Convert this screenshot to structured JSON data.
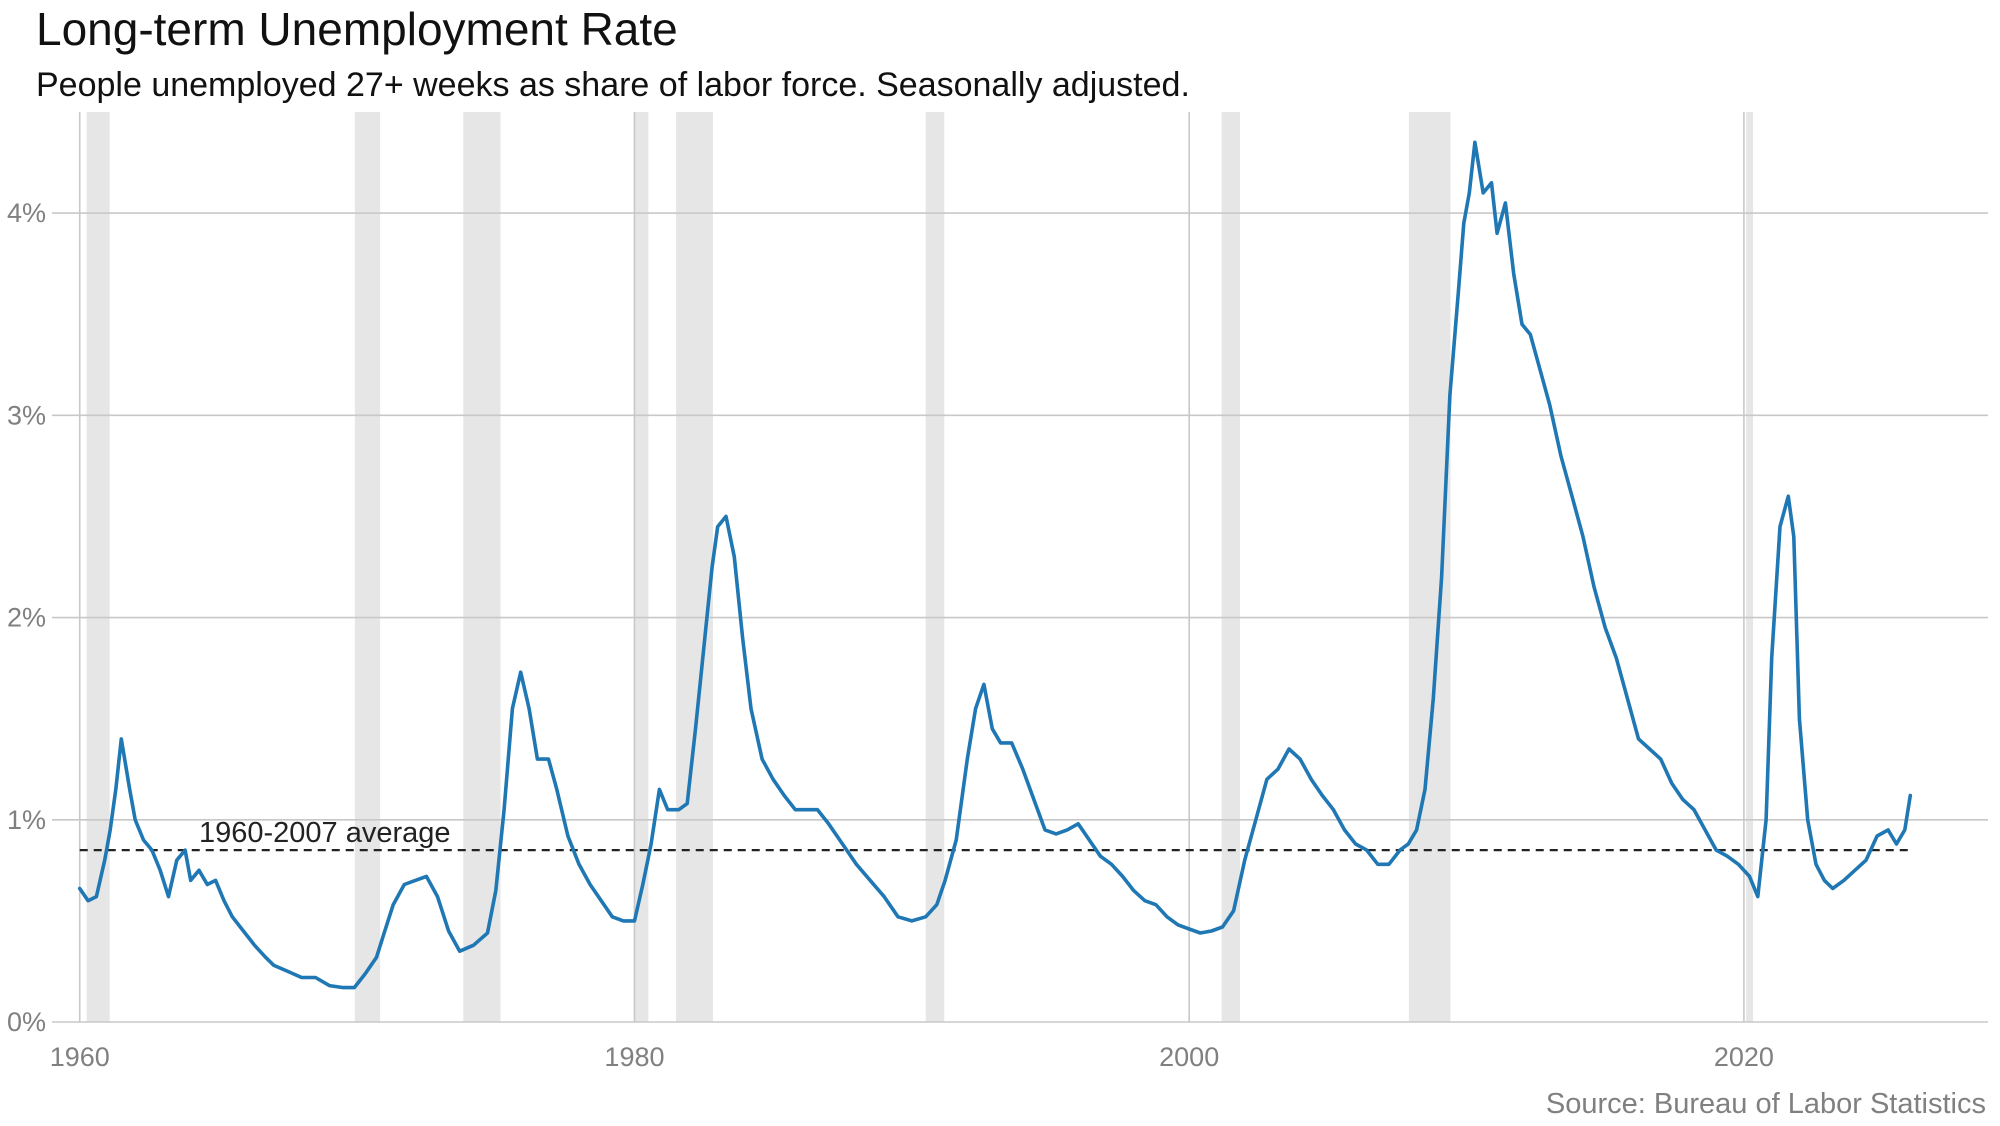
{
  "chart_data": {
    "type": "line",
    "title": "Long-term Unemployment Rate",
    "subtitle": "People unemployed 27+ weeks as share of labor force. Seasonally adjusted.",
    "source": "Source: Bureau of Labor Statistics",
    "xlabel": "",
    "ylabel": "",
    "xlim": [
      1959.0,
      2028.8
    ],
    "ylim": [
      0,
      4.5
    ],
    "x_ticks": [
      1960,
      1980,
      2000,
      2020
    ],
    "x_tick_labels": [
      "1960",
      "1980",
      "2000",
      "2020"
    ],
    "y_ticks": [
      0,
      1,
      2,
      3,
      4
    ],
    "y_tick_labels": [
      "0%",
      "1%",
      "2%",
      "3%",
      "4%"
    ],
    "grid": true,
    "legend": "none",
    "line_color": "#1f77b4",
    "recession_color": "#e6e6e6",
    "recessions": [
      [
        1960.25,
        1961.08
      ],
      [
        1969.92,
        1970.83
      ],
      [
        1973.83,
        1975.17
      ],
      [
        1980.0,
        1980.5
      ],
      [
        1981.5,
        1982.83
      ],
      [
        1990.5,
        1991.17
      ],
      [
        2001.17,
        2001.83
      ],
      [
        2007.92,
        2009.42
      ],
      [
        2020.08,
        2020.33
      ]
    ],
    "reference_line": {
      "label": "1960-2007 average",
      "value": 0.85,
      "style": "dashed",
      "color": "#222222"
    },
    "series": [
      {
        "values": [
          [
            1960.0,
            0.66
          ],
          [
            1960.3,
            0.6
          ],
          [
            1960.6,
            0.62
          ],
          [
            1960.9,
            0.8
          ],
          [
            1961.1,
            0.95
          ],
          [
            1961.3,
            1.15
          ],
          [
            1961.5,
            1.4
          ],
          [
            1961.8,
            1.15
          ],
          [
            1962.0,
            1.0
          ],
          [
            1962.3,
            0.9
          ],
          [
            1962.6,
            0.85
          ],
          [
            1962.9,
            0.75
          ],
          [
            1963.2,
            0.62
          ],
          [
            1963.5,
            0.8
          ],
          [
            1963.8,
            0.85
          ],
          [
            1964.0,
            0.7
          ],
          [
            1964.3,
            0.75
          ],
          [
            1964.6,
            0.68
          ],
          [
            1964.9,
            0.7
          ],
          [
            1965.2,
            0.6
          ],
          [
            1965.5,
            0.52
          ],
          [
            1965.9,
            0.45
          ],
          [
            1966.3,
            0.38
          ],
          [
            1966.7,
            0.32
          ],
          [
            1967.0,
            0.28
          ],
          [
            1967.5,
            0.25
          ],
          [
            1968.0,
            0.22
          ],
          [
            1968.5,
            0.22
          ],
          [
            1969.0,
            0.18
          ],
          [
            1969.5,
            0.17
          ],
          [
            1969.9,
            0.17
          ],
          [
            1970.3,
            0.24
          ],
          [
            1970.7,
            0.32
          ],
          [
            1971.0,
            0.45
          ],
          [
            1971.3,
            0.58
          ],
          [
            1971.7,
            0.68
          ],
          [
            1972.1,
            0.7
          ],
          [
            1972.5,
            0.72
          ],
          [
            1972.9,
            0.62
          ],
          [
            1973.3,
            0.45
          ],
          [
            1973.7,
            0.35
          ],
          [
            1974.2,
            0.38
          ],
          [
            1974.7,
            0.44
          ],
          [
            1975.0,
            0.65
          ],
          [
            1975.3,
            1.05
          ],
          [
            1975.6,
            1.55
          ],
          [
            1975.9,
            1.73
          ],
          [
            1976.2,
            1.55
          ],
          [
            1976.5,
            1.3
          ],
          [
            1976.9,
            1.3
          ],
          [
            1977.2,
            1.15
          ],
          [
            1977.6,
            0.92
          ],
          [
            1978.0,
            0.78
          ],
          [
            1978.4,
            0.68
          ],
          [
            1978.8,
            0.6
          ],
          [
            1979.2,
            0.52
          ],
          [
            1979.6,
            0.5
          ],
          [
            1980.0,
            0.5
          ],
          [
            1980.3,
            0.68
          ],
          [
            1980.6,
            0.88
          ],
          [
            1980.9,
            1.15
          ],
          [
            1981.2,
            1.05
          ],
          [
            1981.6,
            1.05
          ],
          [
            1981.9,
            1.08
          ],
          [
            1982.2,
            1.45
          ],
          [
            1982.5,
            1.85
          ],
          [
            1982.8,
            2.25
          ],
          [
            1983.0,
            2.45
          ],
          [
            1983.3,
            2.5
          ],
          [
            1983.6,
            2.3
          ],
          [
            1983.9,
            1.9
          ],
          [
            1984.2,
            1.55
          ],
          [
            1984.6,
            1.3
          ],
          [
            1985.0,
            1.2
          ],
          [
            1985.4,
            1.12
          ],
          [
            1985.8,
            1.05
          ],
          [
            1986.2,
            1.05
          ],
          [
            1986.6,
            1.05
          ],
          [
            1987.0,
            0.98
          ],
          [
            1987.5,
            0.88
          ],
          [
            1988.0,
            0.78
          ],
          [
            1988.5,
            0.7
          ],
          [
            1989.0,
            0.62
          ],
          [
            1989.5,
            0.52
          ],
          [
            1990.0,
            0.5
          ],
          [
            1990.5,
            0.52
          ],
          [
            1990.9,
            0.58
          ],
          [
            1991.2,
            0.7
          ],
          [
            1991.6,
            0.9
          ],
          [
            1992.0,
            1.3
          ],
          [
            1992.3,
            1.55
          ],
          [
            1992.6,
            1.67
          ],
          [
            1992.9,
            1.45
          ],
          [
            1993.2,
            1.38
          ],
          [
            1993.6,
            1.38
          ],
          [
            1994.0,
            1.25
          ],
          [
            1994.4,
            1.1
          ],
          [
            1994.8,
            0.95
          ],
          [
            1995.2,
            0.93
          ],
          [
            1995.6,
            0.95
          ],
          [
            1996.0,
            0.98
          ],
          [
            1996.4,
            0.9
          ],
          [
            1996.8,
            0.82
          ],
          [
            1997.2,
            0.78
          ],
          [
            1997.6,
            0.72
          ],
          [
            1998.0,
            0.65
          ],
          [
            1998.4,
            0.6
          ],
          [
            1998.8,
            0.58
          ],
          [
            1999.2,
            0.52
          ],
          [
            1999.6,
            0.48
          ],
          [
            2000.0,
            0.46
          ],
          [
            2000.4,
            0.44
          ],
          [
            2000.8,
            0.45
          ],
          [
            2001.2,
            0.47
          ],
          [
            2001.6,
            0.55
          ],
          [
            2002.0,
            0.8
          ],
          [
            2002.4,
            1.0
          ],
          [
            2002.8,
            1.2
          ],
          [
            2003.2,
            1.25
          ],
          [
            2003.6,
            1.35
          ],
          [
            2004.0,
            1.3
          ],
          [
            2004.4,
            1.2
          ],
          [
            2004.8,
            1.12
          ],
          [
            2005.2,
            1.05
          ],
          [
            2005.6,
            0.95
          ],
          [
            2006.0,
            0.88
          ],
          [
            2006.4,
            0.85
          ],
          [
            2006.8,
            0.78
          ],
          [
            2007.2,
            0.78
          ],
          [
            2007.6,
            0.85
          ],
          [
            2007.9,
            0.88
          ],
          [
            2008.2,
            0.95
          ],
          [
            2008.5,
            1.15
          ],
          [
            2008.8,
            1.6
          ],
          [
            2009.1,
            2.2
          ],
          [
            2009.4,
            3.1
          ],
          [
            2009.7,
            3.6
          ],
          [
            2009.9,
            3.95
          ],
          [
            2010.1,
            4.1
          ],
          [
            2010.3,
            4.35
          ],
          [
            2010.6,
            4.1
          ],
          [
            2010.9,
            4.15
          ],
          [
            2011.1,
            3.9
          ],
          [
            2011.4,
            4.05
          ],
          [
            2011.7,
            3.7
          ],
          [
            2012.0,
            3.45
          ],
          [
            2012.3,
            3.4
          ],
          [
            2012.6,
            3.25
          ],
          [
            2013.0,
            3.05
          ],
          [
            2013.4,
            2.8
          ],
          [
            2013.8,
            2.6
          ],
          [
            2014.2,
            2.4
          ],
          [
            2014.6,
            2.15
          ],
          [
            2015.0,
            1.95
          ],
          [
            2015.4,
            1.8
          ],
          [
            2015.8,
            1.6
          ],
          [
            2016.2,
            1.4
          ],
          [
            2016.6,
            1.35
          ],
          [
            2017.0,
            1.3
          ],
          [
            2017.4,
            1.18
          ],
          [
            2017.8,
            1.1
          ],
          [
            2018.2,
            1.05
          ],
          [
            2018.6,
            0.95
          ],
          [
            2019.0,
            0.85
          ],
          [
            2019.4,
            0.82
          ],
          [
            2019.8,
            0.78
          ],
          [
            2020.2,
            0.72
          ],
          [
            2020.5,
            0.62
          ],
          [
            2020.8,
            1.0
          ],
          [
            2021.0,
            1.8
          ],
          [
            2021.3,
            2.45
          ],
          [
            2021.6,
            2.6
          ],
          [
            2021.8,
            2.4
          ],
          [
            2022.0,
            1.5
          ],
          [
            2022.3,
            1.0
          ],
          [
            2022.6,
            0.78
          ],
          [
            2022.9,
            0.7
          ],
          [
            2023.2,
            0.66
          ],
          [
            2023.6,
            0.7
          ],
          [
            2024.0,
            0.75
          ],
          [
            2024.4,
            0.8
          ],
          [
            2024.8,
            0.92
          ],
          [
            2025.2,
            0.95
          ],
          [
            2025.5,
            0.88
          ],
          [
            2025.8,
            0.95
          ],
          [
            2026.0,
            1.12
          ]
        ]
      }
    ]
  }
}
